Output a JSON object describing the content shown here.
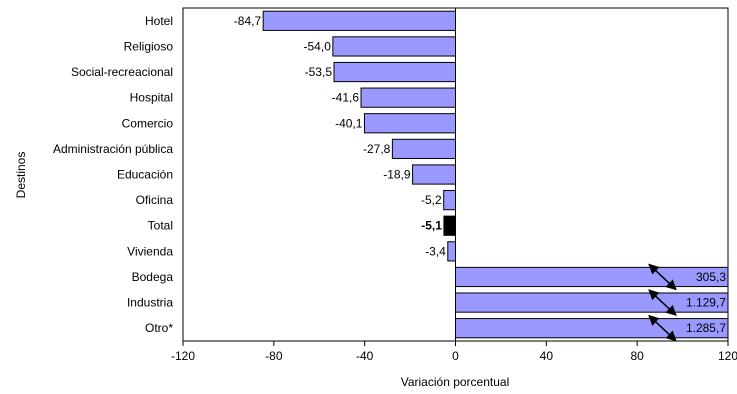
{
  "chart_data": {
    "type": "bar",
    "orientation": "horizontal",
    "title": "",
    "xlabel": "Variación porcentual",
    "ylabel": "Destinos",
    "xlim": [
      -120,
      120
    ],
    "xticks": [
      -120,
      -80,
      -40,
      0,
      40,
      80,
      120
    ],
    "xtick_labels": [
      "-120",
      "-80",
      "-40",
      "0",
      "40",
      "80",
      "120"
    ],
    "grid": false,
    "legend": "none",
    "bar_color": "#9999ff",
    "highlight_color": "#000000",
    "axis_break": "double-arrow marks on bars exceeding the axis limit",
    "categories": [
      "Hotel",
      "Religioso",
      "Social-recreacional",
      "Hospital",
      "Comercio",
      "Administración pública",
      "Educación",
      "Oficina",
      "Total",
      "Vivienda",
      "Bodega",
      "Industria",
      "Otro*"
    ],
    "values": [
      -84.7,
      -54.0,
      -53.5,
      -41.6,
      -40.1,
      -27.8,
      -18.9,
      -5.2,
      -5.1,
      -3.4,
      305.3,
      1129.7,
      1285.7
    ],
    "value_labels": [
      "-84,7",
      "-54,0",
      "-53,5",
      "-41,6",
      "-40,1",
      "-27,8",
      "-18,9",
      "-5,2",
      "-5,1",
      "-3,4",
      "305,3",
      "1.129,7",
      "1.285,7"
    ],
    "highlighted": [
      "Total"
    ]
  }
}
